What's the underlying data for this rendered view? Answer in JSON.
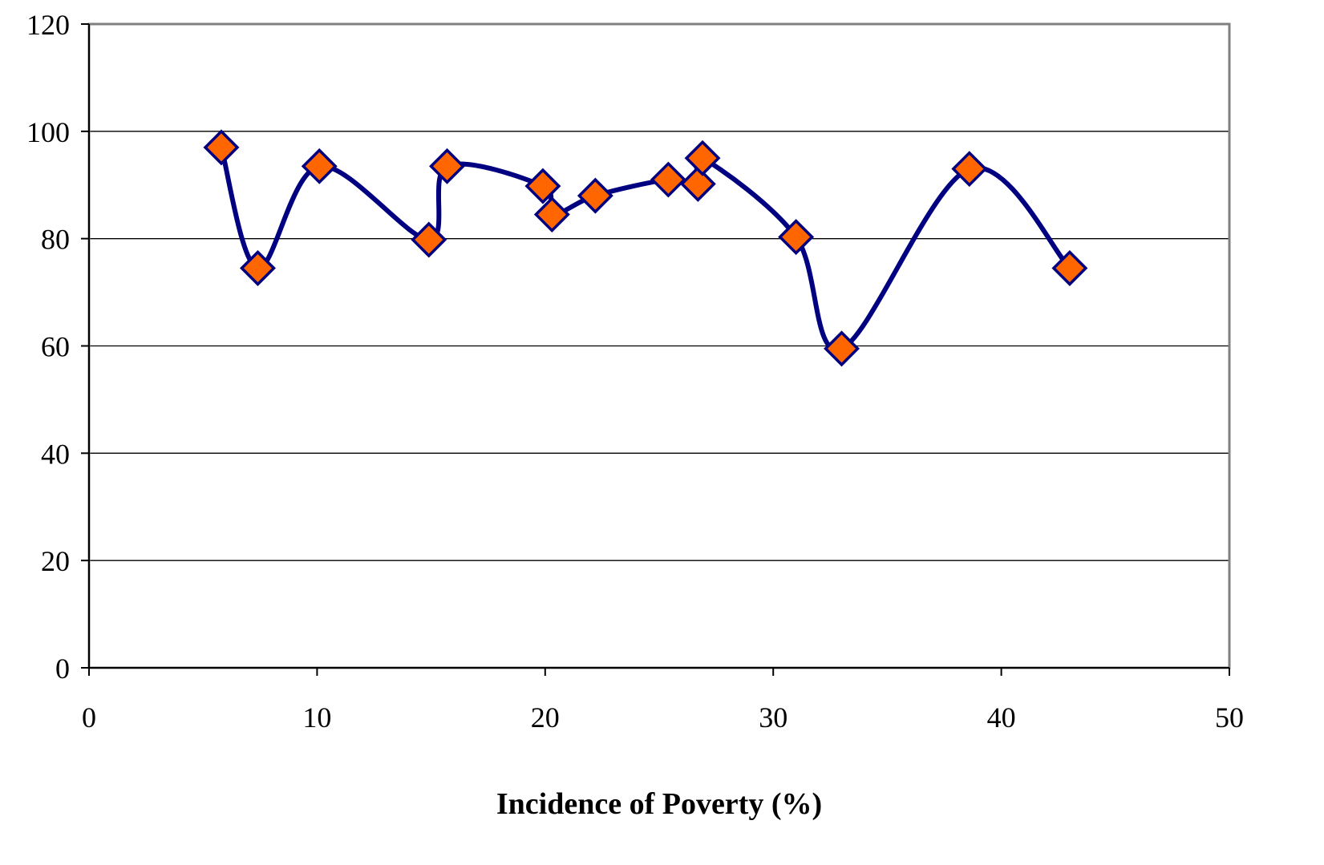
{
  "chart_data": {
    "type": "line",
    "title": "",
    "xlabel": "Incidence of Poverty (%)",
    "ylabel": "",
    "xlim": [
      0,
      50
    ],
    "ylim": [
      0,
      120
    ],
    "xticks": [
      0,
      10,
      20,
      30,
      40,
      50
    ],
    "yticks": [
      0,
      20,
      40,
      60,
      80,
      100,
      120
    ],
    "grid": "horizontal",
    "smooth": true,
    "series": [
      {
        "marker": "diamond",
        "line_color": "#000080",
        "marker_fill": "#FF6600",
        "marker_edge": "#000080",
        "points": [
          {
            "x": 5.8,
            "y": 97
          },
          {
            "x": 7.4,
            "y": 74.5
          },
          {
            "x": 10.1,
            "y": 93.5
          },
          {
            "x": 14.9,
            "y": 79.8
          },
          {
            "x": 15.7,
            "y": 93.5
          },
          {
            "x": 19.9,
            "y": 89.8
          },
          {
            "x": 20.3,
            "y": 84.5
          },
          {
            "x": 22.2,
            "y": 88
          },
          {
            "x": 25.4,
            "y": 91
          },
          {
            "x": 26.7,
            "y": 90.2
          },
          {
            "x": 26.9,
            "y": 95
          },
          {
            "x": 31,
            "y": 80.3
          },
          {
            "x": 33,
            "y": 59.5
          },
          {
            "x": 38.6,
            "y": 93
          },
          {
            "x": 43,
            "y": 74.5
          }
        ]
      }
    ]
  }
}
